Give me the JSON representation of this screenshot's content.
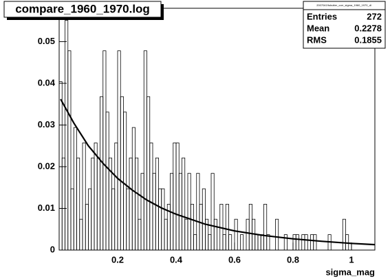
{
  "chart_data": {
    "type": "histogram",
    "title": "compare_1960_1970.log",
    "x_label": "sigma_mag",
    "xlim": [
      0,
      1.08
    ],
    "ylim": [
      0,
      0.058
    ],
    "xticks": [
      0.2,
      0.4,
      0.6,
      0.8,
      1
    ],
    "yticks": [
      0,
      0.01,
      0.02,
      0.03,
      0.04,
      0.05
    ],
    "bins": [
      0,
      0.01,
      0.02,
      0.03,
      0.04,
      0.05,
      0.06,
      0.07,
      0.08,
      0.09,
      0.1,
      0.11,
      0.12,
      0.13,
      0.14,
      0.15,
      0.16,
      0.17,
      0.18,
      0.19,
      0.2,
      0.21,
      0.22,
      0.23,
      0.24,
      0.25,
      0.26,
      0.27,
      0.28,
      0.29,
      0.3,
      0.31,
      0.32,
      0.33,
      0.34,
      0.35,
      0.36,
      0.37,
      0.38,
      0.39,
      0.4,
      0.41,
      0.42,
      0.43,
      0.44,
      0.45,
      0.46,
      0.47,
      0.48,
      0.49,
      0.5,
      0.51,
      0.52,
      0.53,
      0.54,
      0.55,
      0.56,
      0.57,
      0.58,
      0.59,
      0.6,
      0.61,
      0.62,
      0.63,
      0.64,
      0.65,
      0.66,
      0.67,
      0.68,
      0.69,
      0.7,
      0.71,
      0.72,
      0.73,
      0.74,
      0.75,
      0.76,
      0.77,
      0.78,
      0.79,
      0.8,
      0.81,
      0.82,
      0.83,
      0.84,
      0.85,
      0.86,
      0.87,
      0.88,
      0.89,
      0.9,
      0.91,
      0.92,
      0.93,
      0.94,
      0.95,
      0.96,
      0.97,
      0.98,
      0.99,
      1,
      1.01,
      1.02,
      1.03,
      1.04,
      1.05,
      1.06,
      1.07,
      1.08
    ],
    "values": [
      0.0404,
      0.0221,
      0.0551,
      0.0478,
      0.0147,
      0.0294,
      0.0221,
      0.0074,
      0.0257,
      0.011,
      0.0147,
      0.0221,
      0.0257,
      0.0221,
      0.0368,
      0.0478,
      0.0331,
      0.0221,
      0.0147,
      0.0257,
      0.0478,
      0.0368,
      0.0331,
      0.0147,
      0.0221,
      0.0294,
      0.0221,
      0.0074,
      0.0184,
      0.0478,
      0.0368,
      0.0257,
      0.0184,
      0.0221,
      0.0147,
      0.0147,
      0.0074,
      0.011,
      0.0184,
      0.0257,
      0.0257,
      0.0184,
      0.0221,
      0.0074,
      0.0184,
      0.011,
      0.0037,
      0.0184,
      0.011,
      0.0147,
      0.0074,
      0.0037,
      0.0184,
      0.0074,
      0,
      0.011,
      0.0037,
      0.011,
      0.0037,
      0,
      0.0074,
      0,
      0.0037,
      0,
      0.0074,
      0.011,
      0.0074,
      0.0037,
      0.0037,
      0.0037,
      0.011,
      0.0037,
      0,
      0,
      0.0074,
      0,
      0,
      0.0037,
      0,
      0,
      0.0037,
      0.0037,
      0,
      0.0037,
      0.0037,
      0,
      0.0037,
      0.0037,
      0,
      0,
      0,
      0,
      0.0037,
      0,
      0,
      0,
      0,
      0.0074,
      0.0037,
      0,
      0,
      0,
      0,
      0,
      0,
      0,
      0,
      0
    ],
    "color": "#000000",
    "fit": {
      "x": [
        0.005,
        0.05,
        0.1,
        0.15,
        0.2,
        0.25,
        0.3,
        0.35,
        0.4,
        0.5,
        0.6,
        0.7,
        0.8,
        0.9,
        1,
        1.08
      ],
      "values": [
        0.0362,
        0.0305,
        0.025,
        0.0208,
        0.0172,
        0.0144,
        0.012,
        0.0101,
        0.0086,
        0.0062,
        0.0046,
        0.0035,
        0.0027,
        0.0021,
        0.0016,
        0.0013
      ],
      "color": "#000000"
    },
    "stats": {
      "name": "20070419shutter_corr_sigma_1960_1970_dl",
      "rows": [
        {
          "name": "Entries",
          "value": 272
        },
        {
          "name": "Mean",
          "value": 0.2278
        },
        {
          "name": "RMS",
          "value": 0.1855
        }
      ]
    }
  }
}
